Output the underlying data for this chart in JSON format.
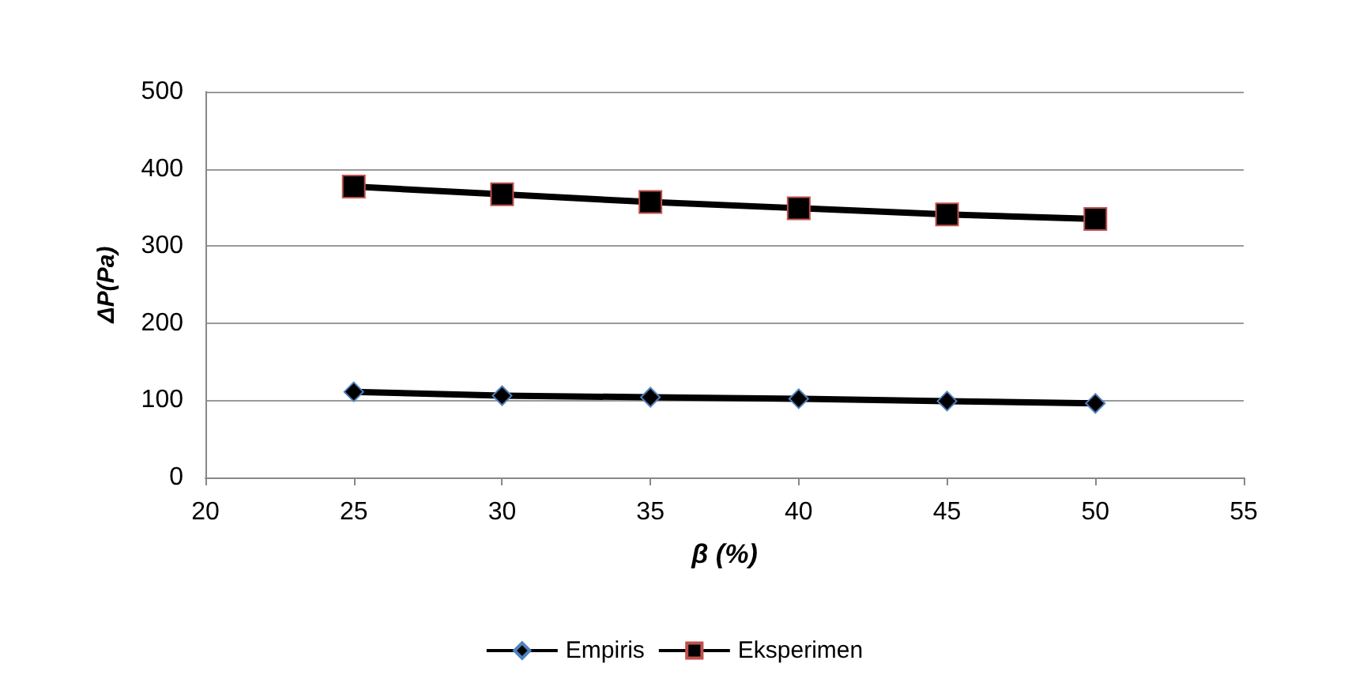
{
  "chart_data": {
    "type": "line",
    "xlabel": "β (%)",
    "ylabel": "ΔP(Pa)",
    "x": [
      25,
      30,
      35,
      40,
      45,
      50
    ],
    "series": [
      {
        "name": "Empiris",
        "color": "#000000",
        "marker": "diamond",
        "values": [
          111,
          106,
          104,
          102,
          99,
          96
        ]
      },
      {
        "name": "Eksperimen",
        "color": "#000000",
        "marker": "square",
        "values": [
          377,
          367,
          357,
          349,
          341,
          335
        ]
      }
    ],
    "xlim": [
      20,
      55
    ],
    "xticks": [
      20,
      25,
      30,
      35,
      40,
      45,
      50,
      55
    ],
    "ylim": [
      0,
      500
    ],
    "yticks": [
      0,
      100,
      200,
      300,
      400,
      500
    ],
    "grid": "y",
    "legend": "bottom",
    "line_style": "solid"
  }
}
